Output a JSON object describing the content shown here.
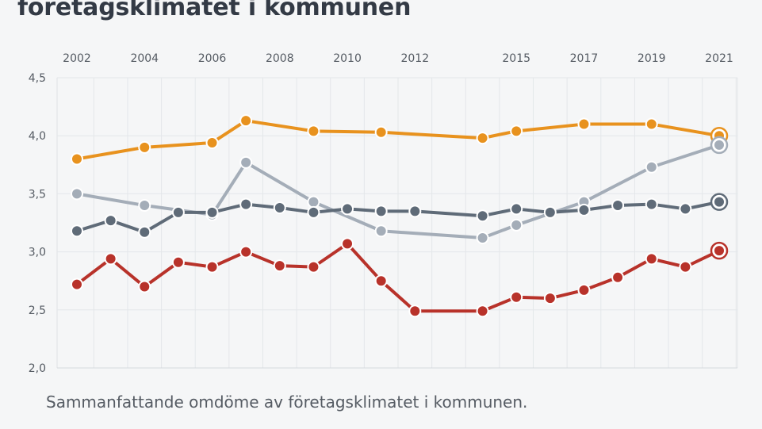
{
  "title": "företagsklimatet i kommunen",
  "caption": "Sammanfattande omdöme av företagsklimatet i kommunen.",
  "chart_data": {
    "type": "line",
    "title": "företagsklimatet i kommunen",
    "xlabel": "",
    "ylabel": "",
    "ylim": [
      2.0,
      4.5
    ],
    "yticks": [
      2.0,
      2.5,
      3.0,
      3.5,
      4.0,
      4.5
    ],
    "ytick_labels": [
      "2,0",
      "2,5",
      "3,0",
      "3,5",
      "4,0",
      "4,5"
    ],
    "xlim": [
      2002,
      2021
    ],
    "xticks": [
      2002,
      2004,
      2006,
      2008,
      2010,
      2012,
      2015,
      2017,
      2019,
      2021
    ],
    "xtick_labels": [
      "2002",
      "2004",
      "2006",
      "2008",
      "2010",
      "2012",
      "2015",
      "2017",
      "2019",
      "2021"
    ],
    "x_axis_position": "top",
    "grid": true,
    "legend": "none",
    "x": [
      2002,
      2003,
      2004,
      2005,
      2006,
      2007,
      2008,
      2009,
      2010,
      2011,
      2012,
      2014,
      2015,
      2016,
      2017,
      2018,
      2019,
      2020,
      2021
    ],
    "series": [
      {
        "color": "#e8921e",
        "x": [
          2002,
          2004,
          2006,
          2007,
          2009,
          2011,
          2014,
          2015,
          2017,
          2019,
          2021
        ],
        "values": [
          3.8,
          3.9,
          3.94,
          4.13,
          4.04,
          4.03,
          3.98,
          4.04,
          4.1,
          4.1,
          4.0
        ]
      },
      {
        "color": "#a4adb8",
        "x": [
          2002,
          2004,
          2006,
          2007,
          2009,
          2011,
          2014,
          2015,
          2017,
          2019,
          2021
        ],
        "values": [
          3.5,
          3.4,
          3.32,
          3.77,
          3.43,
          3.18,
          3.12,
          3.23,
          3.43,
          3.73,
          3.92
        ]
      },
      {
        "color": "#5f6b78",
        "x": [
          2002,
          2003,
          2004,
          2005,
          2006,
          2007,
          2008,
          2009,
          2010,
          2011,
          2012,
          2014,
          2015,
          2016,
          2017,
          2018,
          2019,
          2020,
          2021
        ],
        "values": [
          3.18,
          3.27,
          3.17,
          3.34,
          3.34,
          3.41,
          3.38,
          3.34,
          3.37,
          3.35,
          3.35,
          3.31,
          3.37,
          3.34,
          3.36,
          3.4,
          3.41,
          3.37,
          3.43
        ]
      },
      {
        "color": "#b8322a",
        "x": [
          2002,
          2003,
          2004,
          2005,
          2006,
          2007,
          2008,
          2009,
          2010,
          2011,
          2012,
          2014,
          2015,
          2016,
          2017,
          2018,
          2019,
          2020,
          2021
        ],
        "values": [
          2.72,
          2.94,
          2.7,
          2.91,
          2.87,
          3.0,
          2.88,
          2.87,
          3.07,
          2.75,
          2.49,
          2.49,
          2.61,
          2.6,
          2.67,
          2.78,
          2.94,
          2.87,
          3.01
        ]
      }
    ]
  }
}
